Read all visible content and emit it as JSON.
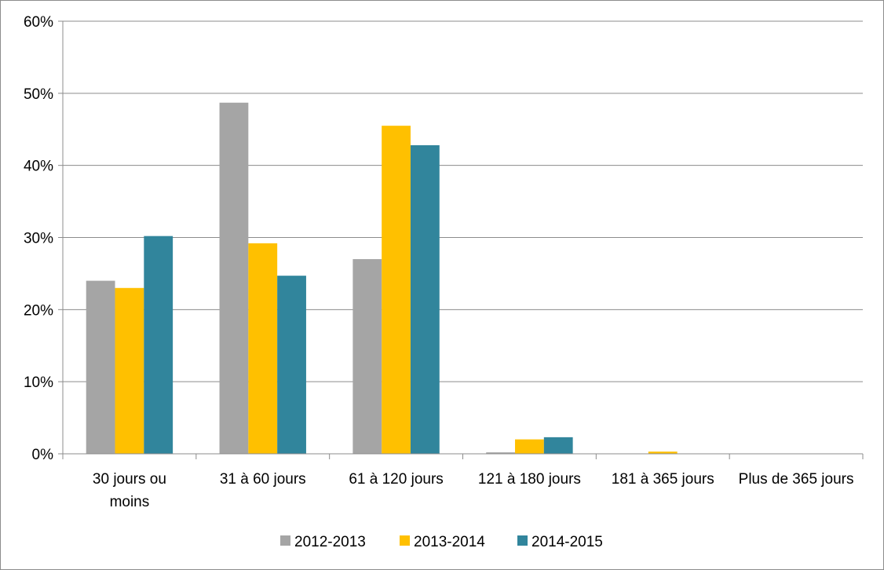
{
  "chart_data": {
    "type": "bar",
    "title": "",
    "xlabel": "",
    "ylabel": "",
    "ylim": [
      0,
      60
    ],
    "y_tick_step": 10,
    "y_tick_format": "percent",
    "grid": true,
    "legend_position": "bottom",
    "categories": [
      [
        "30 jours ou",
        "moins"
      ],
      [
        "31 à 60 jours"
      ],
      [
        "61 à 120 jours"
      ],
      [
        "121 à 180 jours"
      ],
      [
        "181 à 365 jours"
      ],
      [
        "Plus de 365 jours"
      ]
    ],
    "series": [
      {
        "name": "2012-2013",
        "color": "#a5a5a5",
        "values": [
          24.0,
          48.7,
          27.0,
          0.2,
          0.0,
          0.0
        ]
      },
      {
        "name": "2013-2014",
        "color": "#ffc000",
        "values": [
          23.0,
          29.2,
          45.5,
          2.0,
          0.3,
          0.0
        ]
      },
      {
        "name": "2014-2015",
        "color": "#31859c",
        "values": [
          30.2,
          24.7,
          42.8,
          2.3,
          0.0,
          0.0
        ]
      }
    ]
  }
}
